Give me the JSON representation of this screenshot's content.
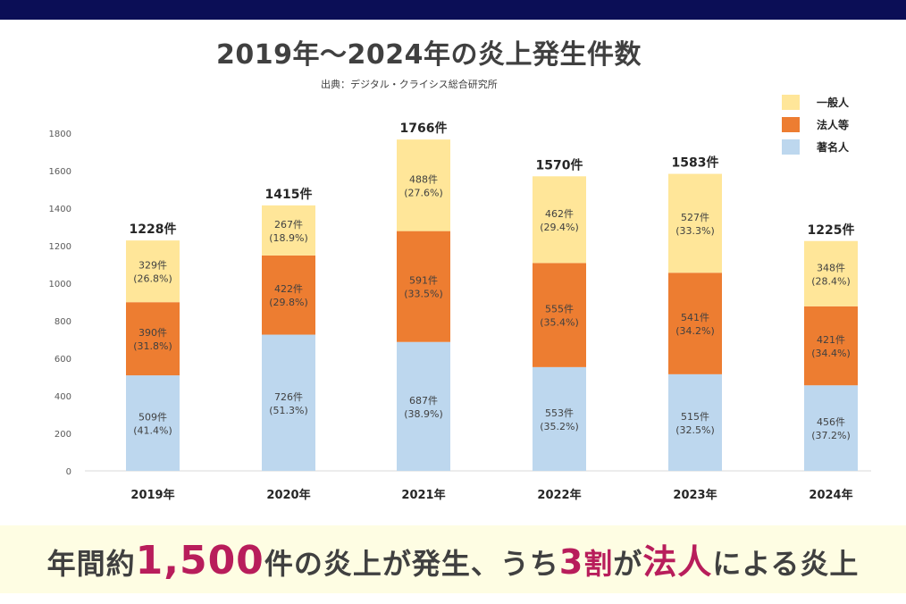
{
  "header": {
    "title": "2019年〜2024年の炎上発生件数",
    "source": "出典：デジタル・クライシス総合研究所"
  },
  "chart_data": {
    "type": "bar",
    "stacked": true,
    "categories": [
      "2019年",
      "2020年",
      "2021年",
      "2022年",
      "2023年",
      "2024年"
    ],
    "series": [
      {
        "name": "著名人",
        "color": "#bdd7ee",
        "values": [
          509,
          726,
          687,
          553,
          515,
          456
        ],
        "labels": [
          "509件",
          "726件",
          "687件",
          "553件",
          "515件",
          "456件"
        ],
        "percents": [
          "(41.4%)",
          "(51.3%)",
          "(38.9%)",
          "(35.2%)",
          "(32.5%)",
          "(37.2%)"
        ]
      },
      {
        "name": "法人等",
        "color": "#ed7d31",
        "values": [
          390,
          422,
          591,
          555,
          541,
          421
        ],
        "labels": [
          "390件",
          "422件",
          "591件",
          "555件",
          "541件",
          "421件"
        ],
        "percents": [
          "(31.8%)",
          "(29.8%)",
          "(33.5%)",
          "(35.4%)",
          "(34.2%)",
          "(34.4%)"
        ]
      },
      {
        "name": "一般人",
        "color": "#ffe699",
        "values": [
          329,
          267,
          488,
          462,
          527,
          348
        ],
        "labels": [
          "329件",
          "267件",
          "488件",
          "462件",
          "527件",
          "348件"
        ],
        "percents": [
          "(26.8%)",
          "(18.9%)",
          "(27.6%)",
          "(29.4%)",
          "(33.3%)",
          "(28.4%)"
        ]
      }
    ],
    "totals": [
      1228,
      1415,
      1766,
      1570,
      1583,
      1225
    ],
    "total_labels": [
      "1228件",
      "1415件",
      "1766件",
      "1570件",
      "1583件",
      "1225件"
    ],
    "legend_order": [
      "一般人",
      "法人等",
      "著名人"
    ],
    "legend_position": "top-right",
    "ylim": [
      0,
      1800
    ],
    "yticks": [
      0,
      200,
      400,
      600,
      800,
      1000,
      1200,
      1400,
      1600,
      1800
    ],
    "grid": false
  },
  "headline": {
    "part1": "年間約",
    "number": "1,500",
    "part2": "件の炎上が発生、うち",
    "ratio_num": "3",
    "ratio_unit": "割",
    "part3": "が",
    "entity": "法人",
    "part4": "による炎上"
  }
}
